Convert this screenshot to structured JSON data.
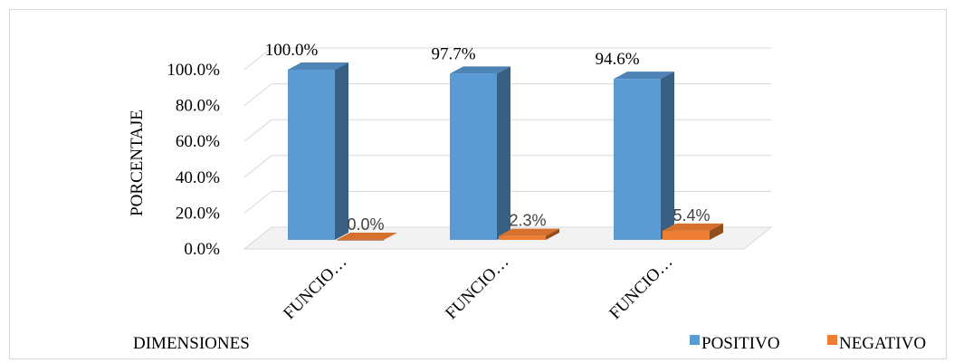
{
  "chart_data": {
    "type": "bar",
    "three_d": true,
    "categories": [
      "FUNCIO…",
      "FUNCIO…",
      "FUNCIO…"
    ],
    "series": [
      {
        "name": "POSITIVO",
        "values": [
          100.0,
          97.7,
          94.6
        ],
        "labels": [
          "100.0%",
          "97.7%",
          "94.6%"
        ],
        "color": "#5b9bd5"
      },
      {
        "name": "NEGATIVO",
        "values": [
          0.0,
          2.3,
          5.4
        ],
        "labels": [
          "0.0%",
          "2.3%",
          "5.4%"
        ],
        "color": "#ed7d31"
      }
    ],
    "ylabel": "PORCENTAJE",
    "xlabel": "DIMENSIONES",
    "ylim": [
      0,
      100
    ],
    "yticks": [
      "0.0%",
      "20.0%",
      "40.0%",
      "60.0%",
      "80.0%",
      "100.0%"
    ],
    "grid": true,
    "legend": "bottom-right"
  }
}
